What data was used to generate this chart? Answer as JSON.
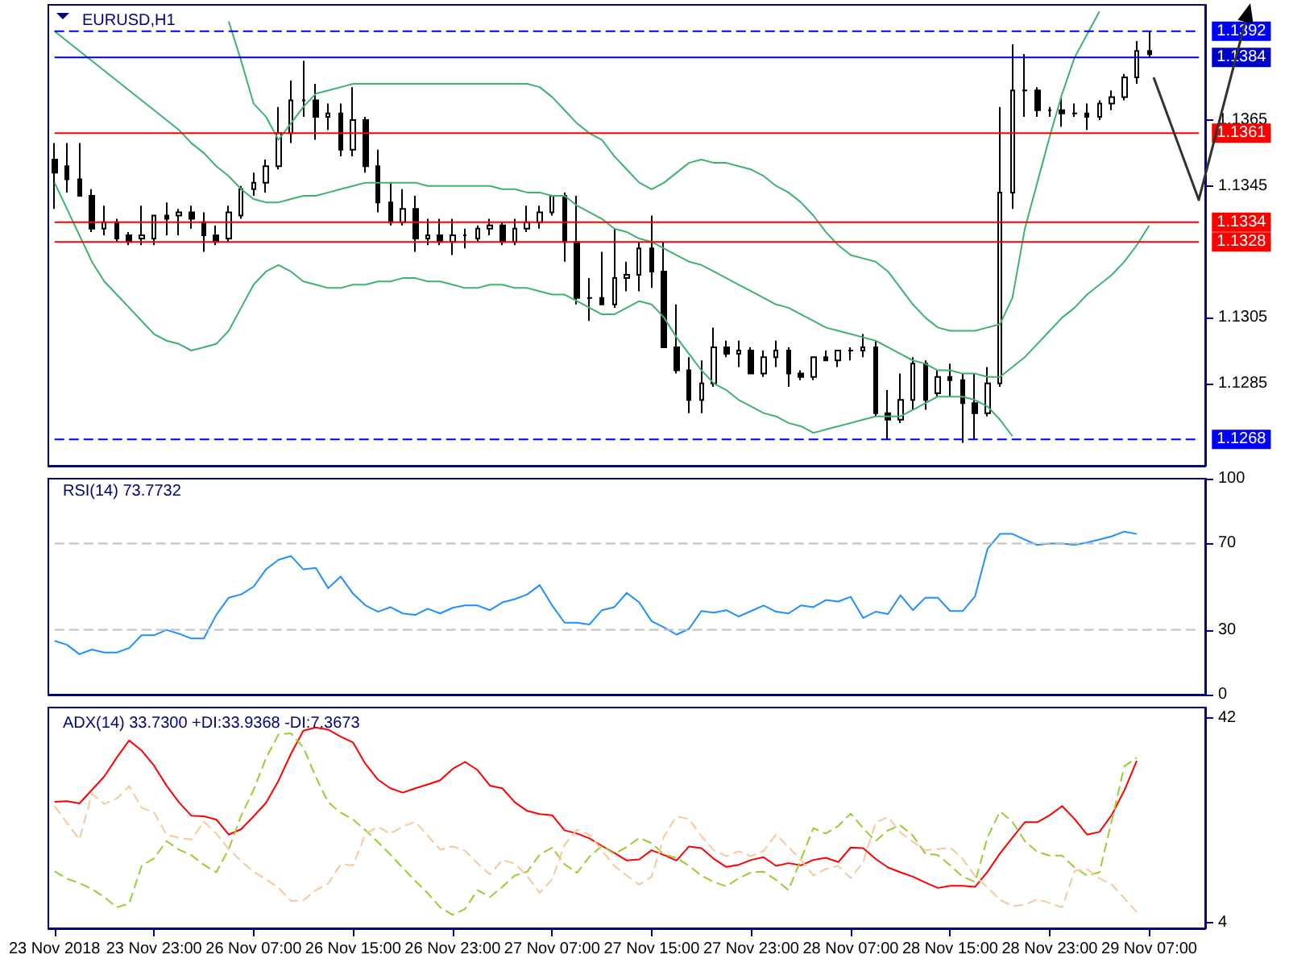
{
  "chart_data": [
    {
      "type": "candlestick",
      "title": "EURUSD,H1",
      "color": "#000000",
      "marker": "none",
      "tick_labels": "y",
      "grid": false,
      "categories": [
        null,
        null,
        null,
        null,
        null,
        null,
        null,
        null,
        null,
        null,
        null,
        null,
        null,
        null,
        null,
        null,
        null,
        null,
        null,
        null,
        null,
        null,
        null,
        null,
        null,
        null,
        null,
        null,
        null,
        null,
        null,
        null,
        null,
        null,
        null,
        null,
        null,
        null,
        null,
        null,
        null,
        null,
        null,
        null,
        null,
        null,
        null,
        null,
        null,
        null,
        null,
        null,
        null,
        null,
        null,
        null,
        null,
        null,
        null,
        null,
        null,
        null,
        null,
        null,
        null,
        null,
        null,
        null,
        null,
        null,
        null,
        null,
        null,
        null,
        null,
        null,
        null,
        null,
        null,
        null,
        null,
        null,
        null,
        null,
        null,
        null,
        null,
        null,
        null
      ],
      "ohlc": [
        [
          1.1353,
          1.1358,
          1.1338,
          1.1349
        ],
        [
          1.1351,
          1.1358,
          1.1343,
          1.1347
        ],
        [
          1.1347,
          1.1358,
          1.1342,
          1.1342
        ],
        [
          1.1342,
          1.1344,
          1.1331,
          1.1332
        ],
        [
          1.1332,
          1.1339,
          1.133,
          1.1334
        ],
        [
          1.1334,
          1.1335,
          1.1328,
          1.1329
        ],
        [
          1.133,
          1.1331,
          1.1327,
          1.1328
        ],
        [
          1.1329,
          1.1339,
          1.1327,
          1.133
        ],
        [
          1.1329,
          1.1336,
          1.1327,
          1.1336
        ],
        [
          1.1336,
          1.134,
          1.133,
          1.1335
        ],
        [
          1.1336,
          1.1338,
          1.133,
          1.1337
        ],
        [
          1.1337,
          1.1339,
          1.1332,
          1.1335
        ],
        [
          1.1334,
          1.1337,
          1.1325,
          1.133
        ],
        [
          1.133,
          1.1333,
          1.1327,
          1.1328
        ],
        [
          1.1329,
          1.1339,
          1.1328,
          1.1337
        ],
        [
          1.1336,
          1.1345,
          1.1335,
          1.1344
        ],
        [
          1.1344,
          1.1349,
          1.1342,
          1.1346
        ],
        [
          1.1346,
          1.1353,
          1.1343,
          1.1351
        ],
        [
          1.1351,
          1.1369,
          1.135,
          1.1361
        ],
        [
          1.1361,
          1.1377,
          1.1358,
          1.1371
        ],
        [
          1.1371,
          1.1383,
          1.1366,
          1.1371
        ],
        [
          1.1371,
          1.1376,
          1.1359,
          1.1366
        ],
        [
          1.1366,
          1.137,
          1.1362,
          1.1367
        ],
        [
          1.1367,
          1.137,
          1.1354,
          1.1356
        ],
        [
          1.1356,
          1.1375,
          1.1354,
          1.1365
        ],
        [
          1.1365,
          1.1366,
          1.1349,
          1.1351
        ],
        [
          1.1351,
          1.1356,
          1.1337,
          1.134
        ],
        [
          1.134,
          1.1346,
          1.1333,
          1.1334
        ],
        [
          1.1334,
          1.1344,
          1.1333,
          1.1338
        ],
        [
          1.1338,
          1.1342,
          1.1325,
          1.1329
        ],
        [
          1.1329,
          1.1335,
          1.1327,
          1.133
        ],
        [
          1.133,
          1.1335,
          1.1327,
          1.1328
        ],
        [
          1.1328,
          1.1335,
          1.1324,
          1.133
        ],
        [
          1.133,
          1.1332,
          1.1326,
          1.133
        ],
        [
          1.1329,
          1.1333,
          1.1328,
          1.1332
        ],
        [
          1.1332,
          1.1335,
          1.133,
          1.1333
        ],
        [
          1.1333,
          1.1334,
          1.1327,
          1.1328
        ],
        [
          1.1328,
          1.1335,
          1.1327,
          1.1332
        ],
        [
          1.1332,
          1.1339,
          1.1331,
          1.1334
        ],
        [
          1.1334,
          1.1339,
          1.1332,
          1.1337
        ],
        [
          1.1337,
          1.1342,
          1.1336,
          1.1342
        ],
        [
          1.1342,
          1.1343,
          1.1322,
          1.1328
        ],
        [
          1.1328,
          1.1342,
          1.1309,
          1.1311
        ],
        [
          1.1311,
          1.1317,
          1.1304,
          1.1311
        ],
        [
          1.1311,
          1.1325,
          1.1309,
          1.1309
        ],
        [
          1.1309,
          1.1332,
          1.1308,
          1.1317
        ],
        [
          1.1317,
          1.1322,
          1.1313,
          1.1318
        ],
        [
          1.1318,
          1.1328,
          1.1313,
          1.1326
        ],
        [
          1.1326,
          1.1336,
          1.1314,
          1.1319
        ],
        [
          1.1319,
          1.1328,
          1.1296,
          1.1296
        ],
        [
          1.1296,
          1.1309,
          1.1288,
          1.1289
        ],
        [
          1.1289,
          1.1293,
          1.1276,
          1.128
        ],
        [
          1.128,
          1.1292,
          1.1276,
          1.1285
        ],
        [
          1.1285,
          1.1302,
          1.1284,
          1.1296
        ],
        [
          1.1296,
          1.1298,
          1.1293,
          1.1294
        ],
        [
          1.1294,
          1.1298,
          1.129,
          1.1295
        ],
        [
          1.1295,
          1.1296,
          1.1288,
          1.1288
        ],
        [
          1.1288,
          1.1295,
          1.1287,
          1.1293
        ],
        [
          1.1293,
          1.1298,
          1.129,
          1.1295
        ],
        [
          1.1295,
          1.1296,
          1.1284,
          1.1288
        ],
        [
          1.1288,
          1.1289,
          1.1286,
          1.1287
        ],
        [
          1.1287,
          1.1293,
          1.1286,
          1.1293
        ],
        [
          1.1293,
          1.1295,
          1.1292,
          1.1292
        ],
        [
          1.1292,
          1.1295,
          1.129,
          1.1295
        ],
        [
          1.1295,
          1.1296,
          1.1292,
          1.1295
        ],
        [
          1.1295,
          1.13,
          1.1293,
          1.1296
        ],
        [
          1.1296,
          1.1298,
          1.1275,
          1.1276
        ],
        [
          1.1276,
          1.1283,
          1.1268,
          1.1274
        ],
        [
          1.1274,
          1.1288,
          1.1273,
          1.128
        ],
        [
          1.128,
          1.1293,
          1.1277,
          1.1291
        ],
        [
          1.1291,
          1.1292,
          1.1277,
          1.128
        ],
        [
          1.1282,
          1.1289,
          1.1281,
          1.1287
        ],
        [
          1.1287,
          1.1291,
          1.1281,
          1.1286
        ],
        [
          1.1286,
          1.1288,
          1.1267,
          1.1279
        ],
        [
          1.1279,
          1.1288,
          1.1268,
          1.1276
        ],
        [
          1.1276,
          1.129,
          1.1275,
          1.1285
        ],
        [
          1.1285,
          1.1369,
          1.1284,
          1.1343
        ],
        [
          1.1343,
          1.1388,
          1.1338,
          1.1374
        ],
        [
          1.1374,
          1.1385,
          1.1366,
          1.1374
        ],
        [
          1.1374,
          1.1375,
          1.1366,
          1.1368
        ],
        [
          1.1368,
          1.1369,
          1.1366,
          1.1368
        ],
        [
          1.1368,
          1.1372,
          1.1363,
          1.1367
        ],
        [
          1.1367,
          1.137,
          1.1366,
          1.1367
        ],
        [
          1.1367,
          1.137,
          1.1362,
          1.1366
        ],
        [
          1.1366,
          1.1371,
          1.1365,
          1.137
        ],
        [
          1.137,
          1.1374,
          1.1368,
          1.1372
        ],
        [
          1.1372,
          1.1379,
          1.1371,
          1.1378
        ],
        [
          1.1378,
          1.1389,
          1.1376,
          1.1386
        ],
        [
          1.1386,
          1.1392,
          1.1384,
          1.1385
        ]
      ],
      "series": [
        {
          "type": "line",
          "color": "#3cb371",
          "values": [
            null,
            null,
            null,
            null,
            null,
            null,
            null,
            null,
            null,
            null,
            null,
            null,
            null,
            null,
            1.1395,
            1.1383,
            1.137,
            1.1366,
            1.1359,
            1.1364,
            1.1369,
            1.1373,
            1.1374,
            1.1375,
            1.1376,
            1.1376,
            1.1376,
            1.1376,
            1.1376,
            1.1376,
            1.1376,
            1.1376,
            1.1376,
            1.1376,
            1.1376,
            1.1376,
            1.1376,
            1.1376,
            1.1376,
            1.1375,
            1.1372,
            1.1368,
            1.1364,
            1.1361,
            1.1359,
            1.1354,
            1.135,
            1.1346,
            1.1344,
            1.1346,
            1.1349,
            1.1352,
            1.1353,
            1.1352,
            1.1352,
            1.1351,
            1.135,
            1.1348,
            1.1345,
            1.1343,
            1.134,
            1.1336,
            1.1331,
            1.1327,
            1.1324,
            1.1323,
            1.1322,
            1.1319,
            1.1314,
            1.1309,
            1.1305,
            1.1302,
            1.1301,
            1.1301,
            1.1301,
            1.1302,
            1.1303,
            1.1311,
            1.1332,
            1.1346,
            1.136,
            1.1373,
            1.1384,
            1.1391,
            1.1398,
            null,
            null,
            null,
            null
          ]
        },
        {
          "type": "line",
          "color": "#3cb371",
          "values": [
            1.1392,
            1.1389,
            1.1386,
            1.1383,
            1.138,
            1.1377,
            1.1374,
            1.1371,
            1.1368,
            1.1365,
            1.1362,
            1.1358,
            1.1355,
            1.1351,
            1.1348,
            1.1344,
            1.1341,
            1.134,
            1.134,
            1.1341,
            1.1342,
            1.1342,
            1.1343,
            1.1344,
            1.1345,
            1.1346,
            1.1346,
            1.1346,
            1.1346,
            1.1346,
            1.1345,
            1.1345,
            1.1345,
            1.1345,
            1.1345,
            1.1345,
            1.1344,
            1.1344,
            1.1343,
            1.1343,
            1.1342,
            1.1342,
            1.1339,
            1.1337,
            1.1335,
            1.1332,
            1.1331,
            1.1329,
            1.1328,
            1.1326,
            1.1324,
            1.1322,
            1.1321,
            1.1319,
            1.1317,
            1.1315,
            1.1313,
            1.1311,
            1.1309,
            1.1308,
            1.1306,
            1.1304,
            1.1302,
            1.1301,
            1.13,
            1.1299,
            1.1298,
            1.1296,
            1.1294,
            1.1292,
            1.1291,
            1.1289,
            1.1289,
            1.1288,
            1.1288,
            1.1287,
            1.1287,
            1.129,
            1.1293,
            1.1297,
            1.1301,
            1.1305,
            1.1308,
            1.1312,
            1.1315,
            1.1318,
            1.1322,
            1.1327,
            1.1333
          ]
        },
        {
          "type": "line",
          "color": "#3cb371",
          "values": [
            1.1346,
            1.1338,
            1.133,
            1.1322,
            1.1316,
            1.1312,
            1.1308,
            1.1304,
            1.13,
            1.1298,
            1.1297,
            1.1295,
            1.1296,
            1.1297,
            1.1301,
            1.1308,
            1.1315,
            1.1319,
            1.1321,
            1.1319,
            1.1316,
            1.1315,
            1.1314,
            1.1314,
            1.1315,
            1.1315,
            1.1316,
            1.1316,
            1.1317,
            1.1317,
            1.1316,
            1.1316,
            1.1315,
            1.1314,
            1.1314,
            1.1315,
            1.1315,
            1.1314,
            1.1314,
            1.1313,
            1.1312,
            1.1312,
            1.131,
            1.1308,
            1.1306,
            1.1306,
            1.1308,
            1.131,
            1.1309,
            1.1305,
            1.1299,
            1.1294,
            1.1289,
            1.1285,
            1.1283,
            1.128,
            1.1278,
            1.1276,
            1.1275,
            1.1273,
            1.1272,
            1.127,
            1.1271,
            1.1272,
            1.1273,
            1.1274,
            1.1275,
            1.1275,
            1.1275,
            1.1277,
            1.1279,
            1.1281,
            1.1281,
            1.1281,
            1.128,
            1.1278,
            1.1274,
            1.1269,
            null,
            null,
            null,
            null,
            null,
            null,
            null,
            null,
            null,
            null,
            null
          ]
        }
      ],
      "ylim": [
        1.126,
        1.14
      ],
      "yticks": [
        1.1285,
        1.1305,
        1.1345,
        1.1365
      ],
      "ref_lines": [
        {
          "axis": "y",
          "value": 1.1392,
          "label": "1.1392",
          "color": "#0000ff",
          "line_style": "dashed"
        },
        {
          "axis": "y",
          "value": 1.1384,
          "label": "1.1384",
          "color": "#0000cd",
          "line_style": "solid"
        },
        {
          "axis": "y",
          "value": 1.1361,
          "label": "1.1361",
          "color": "#ff0000",
          "line_style": "solid"
        },
        {
          "axis": "y",
          "value": 1.1334,
          "label": "1.1334",
          "color": "#ff0000",
          "line_style": "solid"
        },
        {
          "axis": "y",
          "value": 1.1328,
          "label": "1.1328",
          "color": "#ff0000",
          "line_style": "solid"
        },
        {
          "axis": "y",
          "value": 1.1268,
          "label": "1.1268",
          "color": "#0000ff",
          "line_style": "dashed"
        }
      ]
    },
    {
      "type": "line",
      "title": "RSI(14) 73.7732",
      "marker": "none",
      "tick_labels": "y",
      "grid": false,
      "categories": [
        null,
        null,
        null,
        null,
        null,
        null,
        null,
        null,
        null,
        null,
        null,
        null,
        null,
        null,
        null,
        null,
        null,
        null,
        null,
        null,
        null,
        null,
        null,
        null,
        null,
        null,
        null,
        null,
        null,
        null,
        null,
        null,
        null,
        null,
        null,
        null,
        null,
        null,
        null,
        null,
        null,
        null,
        null,
        null,
        null,
        null,
        null,
        null,
        null,
        null,
        null,
        null,
        null,
        null,
        null,
        null,
        null,
        null,
        null,
        null,
        null,
        null,
        null,
        null,
        null,
        null,
        null,
        null,
        null,
        null,
        null,
        null,
        null,
        null,
        null,
        null,
        null,
        null,
        null,
        null,
        null,
        null,
        null,
        null,
        null,
        null,
        null,
        null,
        null
      ],
      "series": [
        {
          "color": "#1e90ff",
          "values": [
            24.9,
            23.1,
            18.7,
            20.9,
            19.5,
            19.5,
            21.6,
            27.5,
            27.5,
            30.0,
            28.2,
            26.0,
            26.0,
            36.9,
            44.9,
            46.4,
            50.0,
            58.0,
            62.4,
            64.2,
            58.0,
            58.7,
            49.3,
            54.7,
            46.7,
            41.3,
            38.4,
            40.5,
            37.6,
            36.9,
            39.8,
            37.6,
            40.2,
            41.3,
            41.3,
            39.1,
            42.7,
            44.2,
            46.4,
            50.7,
            41.3,
            33.3,
            33.3,
            32.5,
            39.1,
            40.5,
            47.1,
            42.7,
            34.0,
            31.1,
            27.8,
            30.4,
            38.7,
            38.0,
            39.1,
            36.2,
            38.7,
            41.3,
            38.4,
            37.6,
            41.3,
            40.5,
            43.8,
            43.1,
            45.3,
            35.5,
            38.4,
            37.3,
            46.0,
            39.1,
            44.9,
            44.9,
            38.7,
            38.7,
            45.6,
            67.5,
            74.4,
            74.4,
            71.8,
            69.3,
            70.0,
            70.0,
            69.3,
            70.4,
            71.8,
            73.3,
            75.5,
            74.4,
            null
          ]
        }
      ],
      "ylim": [
        0,
        100
      ],
      "yticks": [
        0,
        30,
        70,
        100
      ],
      "ref_lines": [
        {
          "axis": "y",
          "value": 70,
          "color": "#c0c0c0",
          "line_style": "dashed"
        },
        {
          "axis": "y",
          "value": 30,
          "color": "#c0c0c0",
          "line_style": "dashed"
        }
      ]
    },
    {
      "type": "line",
      "title": "ADX(14) 33.7300 +DI:33.9368 -DI:7.3673",
      "marker": "none",
      "grid": false,
      "categories": [
        "23 Nov 2018",
        null,
        null,
        null,
        null,
        null,
        null,
        null,
        "23 Nov 23:00",
        null,
        null,
        null,
        null,
        null,
        null,
        null,
        "26 Nov 07:00",
        null,
        null,
        null,
        null,
        null,
        null,
        null,
        "26 Nov 15:00",
        null,
        null,
        null,
        null,
        null,
        null,
        null,
        "26 Nov 23:00",
        null,
        null,
        null,
        null,
        null,
        null,
        null,
        "27 Nov 07:00",
        null,
        null,
        null,
        null,
        null,
        null,
        null,
        "27 Nov 15:00",
        null,
        null,
        null,
        null,
        null,
        null,
        null,
        "27 Nov 23:00",
        null,
        null,
        null,
        null,
        null,
        null,
        null,
        "28 Nov 07:00",
        null,
        null,
        null,
        null,
        null,
        null,
        null,
        "28 Nov 15:00",
        null,
        null,
        null,
        null,
        null,
        null,
        null,
        "28 Nov 23:00",
        null,
        null,
        null,
        null,
        null,
        null,
        null,
        "29 Nov 07:00"
      ],
      "series": [
        {
          "color": "#ff0000",
          "line_style": "solid",
          "values": [
            26.5,
            26.6,
            26.2,
            28.7,
            31.2,
            34.7,
            37.9,
            36.0,
            33.2,
            29.5,
            26.4,
            23.9,
            23.8,
            23.2,
            20.4,
            21.4,
            23.8,
            26.3,
            30.4,
            35.4,
            39.7,
            40.3,
            39.9,
            38.6,
            37.5,
            33.5,
            30.6,
            29.0,
            28.2,
            29.0,
            29.7,
            30.5,
            32.6,
            33.9,
            32.4,
            29.5,
            29.0,
            26.4,
            24.8,
            24.2,
            24.0,
            21.2,
            20.6,
            19.7,
            18.3,
            17.0,
            15.6,
            15.8,
            17.5,
            16.6,
            15.6,
            18.2,
            17.9,
            15.9,
            14.4,
            14.8,
            15.7,
            16.2,
            14.6,
            15.1,
            14.7,
            15.7,
            16.1,
            15.3,
            18.0,
            17.9,
            15.9,
            14.3,
            13.4,
            12.6,
            11.5,
            10.5,
            10.9,
            10.9,
            10.7,
            13.5,
            16.9,
            19.8,
            22.7,
            22.7,
            24.0,
            25.7,
            23.3,
            20.4,
            20.9,
            24.1,
            28.6,
            34.1,
            null
          ]
        },
        {
          "color": "#9acd32",
          "line_style": "dashed",
          "values": [
            13.6,
            12.2,
            11.4,
            10.3,
            8.8,
            6.9,
            7.6,
            14.6,
            16.0,
            19.2,
            17.6,
            16.6,
            14.8,
            13.4,
            17.7,
            23.9,
            28.7,
            34.6,
            39.0,
            39.2,
            36.6,
            31.1,
            26.4,
            24.5,
            23.2,
            21.2,
            19.0,
            16.7,
            14.2,
            11.8,
            9.5,
            6.9,
            5.5,
            6.6,
            10.1,
            8.8,
            10.7,
            12.8,
            13.5,
            16.7,
            18.0,
            14.9,
            13.3,
            16.3,
            18.3,
            16.8,
            18.1,
            19.8,
            18.8,
            16.7,
            16.1,
            14.6,
            12.8,
            11.6,
            10.8,
            12.3,
            13.4,
            13.5,
            12.0,
            10.1,
            15.8,
            21.6,
            20.6,
            22.0,
            24.3,
            21.6,
            19.2,
            21.2,
            22.1,
            20.2,
            16.9,
            16.6,
            14.7,
            12.6,
            11.6,
            19.9,
            24.7,
            22.8,
            19.2,
            17.2,
            16.5,
            16.5,
            14.3,
            12.8,
            13.4,
            23.1,
            33.1,
            34.7,
            null
          ]
        },
        {
          "color": "#f5c99a",
          "line_style": "dashed",
          "values": [
            25.7,
            22.6,
            19.5,
            28.0,
            26.1,
            27.1,
            29.4,
            25.4,
            24.5,
            20.4,
            19.8,
            19.5,
            22.8,
            20.6,
            17.7,
            15.5,
            13.5,
            12.1,
            10.5,
            8.1,
            8.2,
            10.1,
            11.3,
            14.9,
            14.7,
            20.6,
            21.8,
            20.6,
            21.9,
            22.8,
            20.2,
            17.6,
            18.2,
            17.4,
            15.1,
            13.0,
            15.7,
            15.0,
            12.7,
            9.6,
            12.1,
            18.5,
            21.3,
            20.4,
            17.5,
            14.6,
            12.8,
            11.1,
            12.6,
            20.1,
            23.8,
            23.3,
            20.1,
            17.5,
            16.4,
            17.3,
            16.4,
            17.4,
            20.4,
            18.1,
            15.7,
            12.8,
            14.0,
            14.6,
            12.3,
            15.3,
            22.6,
            23.7,
            20.8,
            19.1,
            17.5,
            17.7,
            18.0,
            15.9,
            12.7,
            10.6,
            8.3,
            7.1,
            7.4,
            8.4,
            7.7,
            6.9,
            13.7,
            14.0,
            12.3,
            11.1,
            8.6,
            6.0,
            null
          ]
        }
      ],
      "ylim": [
        3,
        44
      ],
      "yticks": [
        4,
        42
      ]
    }
  ]
}
